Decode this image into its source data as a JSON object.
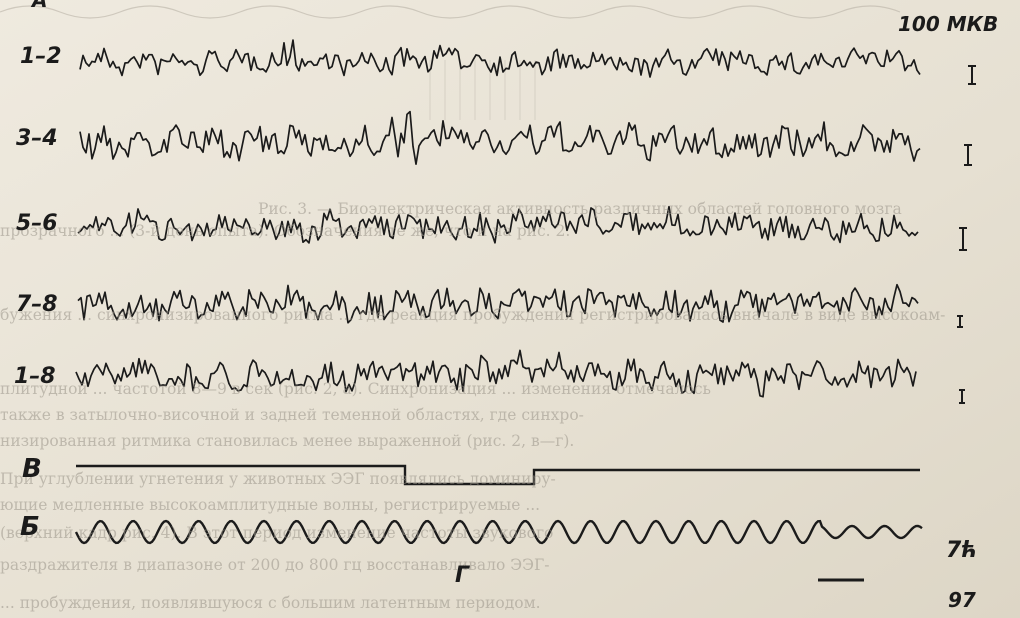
{
  "labels": {
    "corner": "А",
    "scale": "100 МКВ",
    "channels": [
      "1–2",
      "3–4",
      "5–6",
      "7–8",
      "1–8"
    ],
    "event_marker": "В",
    "sine": "Б",
    "timebar": "Г",
    "right_note_1": "7ћ",
    "right_note_2": "97"
  },
  "bleed_text": [
    "Рис. 3. — Биоэлектрическая активность различных областей головного мозга",
    "прозрачного ... (3-й день опыта). Обозначения те же, что и на рис. 2.",
    "бужения ... синхронизированного ритма ... где реакция пробуждения регистрировалась вначале в виде высокоам-",
    "плитудной ... частотой 8—9 в сек (рис. 2, а). Синхронизация ... изменения отмечалось",
    "также в затылочно-височной и задней теменной областях, где синхро-",
    "низированная ритмика становилась менее выраженной (рис. 2, в—г).",
    "При углублении угнетения у животных ЭЭГ появлялись доминиру-",
    "ющие медленные высокоамплитудные волны, регистрируемые ...",
    "(верхний кадр рис. 4). В этот период изменение частоты звукового",
    "раздражителя в диапазоне от 200 до 800 гц восстанавливало ЭЭГ-",
    "... пробуждения, появлявшуюся с большим латентным периодом."
  ],
  "colors": {
    "ink": "#1b1b1b",
    "paper": "#e9e4d8",
    "bleed": "#9b958a"
  }
}
